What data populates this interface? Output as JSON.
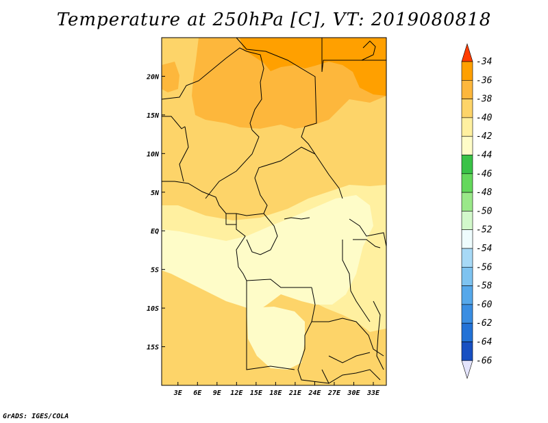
{
  "title": "Temperature at 250hPa [C], VT: 2019080818",
  "footer": "GrADS: IGES/COLA",
  "map": {
    "x_ticks": [
      "3E",
      "6E",
      "9E",
      "12E",
      "15E",
      "18E",
      "21E",
      "24E",
      "27E",
      "30E",
      "33E"
    ],
    "x_tick_values": [
      3,
      6,
      9,
      12,
      15,
      18,
      21,
      24,
      27,
      30,
      33
    ],
    "y_ticks": [
      "20N",
      "15N",
      "10N",
      "5N",
      "EQ",
      "5S",
      "10S",
      "15S"
    ],
    "y_tick_values": [
      20,
      15,
      10,
      5,
      0,
      -5,
      -10,
      -15
    ],
    "lon_range": [
      0.5,
      35
    ],
    "lat_range": [
      -20,
      25
    ]
  },
  "colorbar": {
    "labels": [
      "-34",
      "-36",
      "-38",
      "-40",
      "-42",
      "-44",
      "-46",
      "-48",
      "-50",
      "-52",
      "-54",
      "-56",
      "-58",
      "-60",
      "-62",
      "-64",
      "-66"
    ],
    "colors": [
      "#ff6a00",
      "#ffa000",
      "#fdb73c",
      "#fdd469",
      "#fff0a0",
      "#fefcc8",
      "#39c247",
      "#64d85c",
      "#9ae889",
      "#d2f8cb",
      "#eefcfd",
      "#a7d9f6",
      "#7ec3f0",
      "#56a8ea",
      "#3a8ee2",
      "#2272d6",
      "#1850c2",
      "#0a1f85"
    ],
    "top_arrow_color": "#ff3c00",
    "bottom_arrow_color": "#e4e4fc"
  },
  "fill_colors": {
    "c36": "#ffa000",
    "c38": "#fdb73c",
    "c40": "#fdd469",
    "c42": "#fff0a0",
    "c44": "#fefcc8"
  }
}
